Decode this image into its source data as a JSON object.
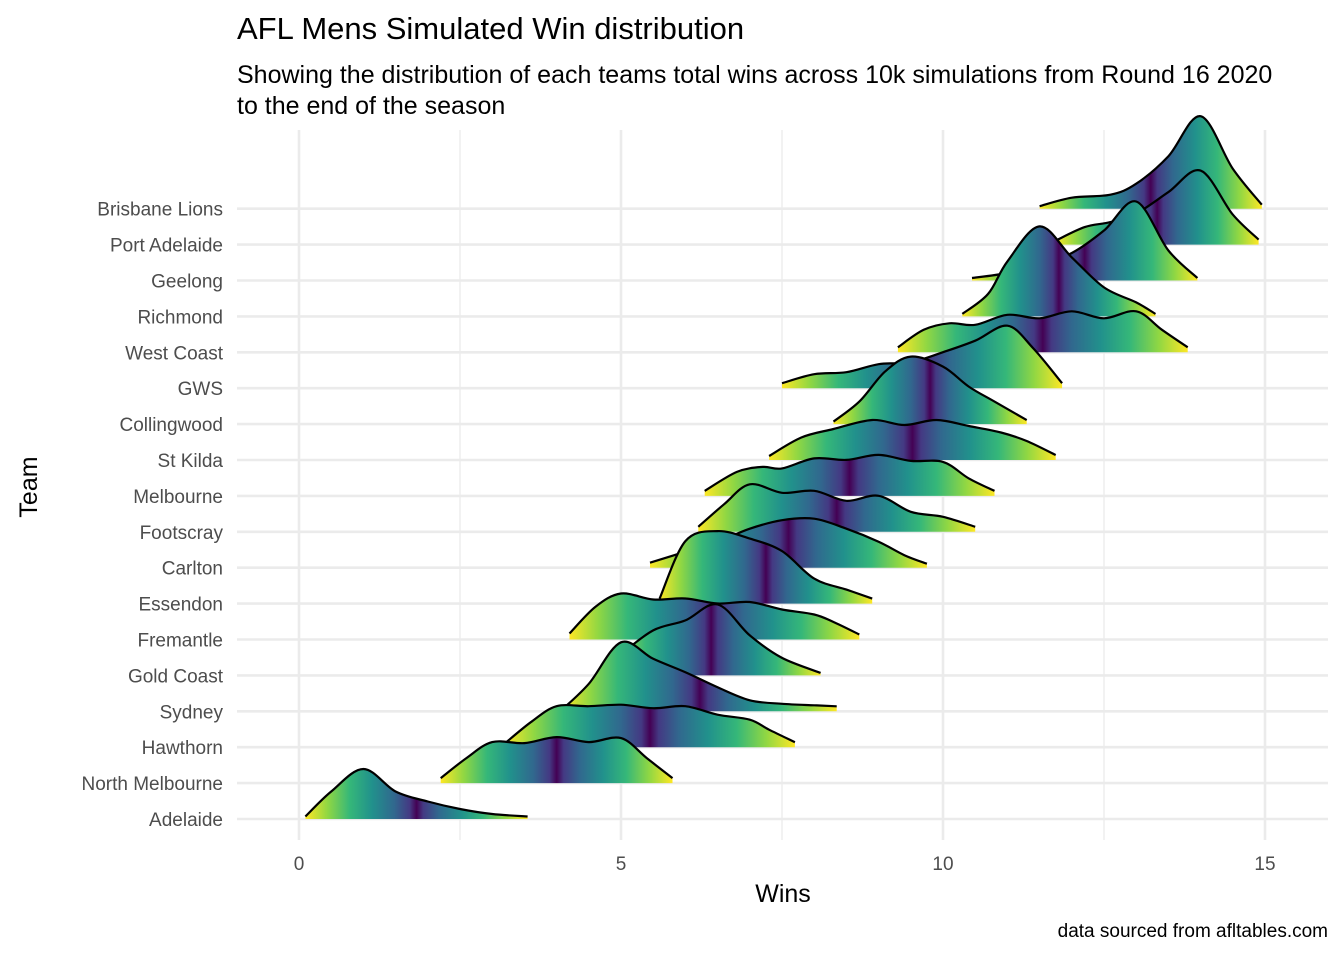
{
  "title": "AFL Mens Simulated Win distribution",
  "subtitle": "Showing the distribution of each teams total wins across 10k simulations from Round 16 2020 to the end of the season",
  "caption": "data sourced from afltables.com",
  "chart_data": {
    "type": "ridgeline",
    "xlabel": "Wins",
    "ylabel": "Team",
    "xlim": [
      -1.8,
      16.5
    ],
    "x_ticks": [
      0,
      5,
      10,
      15
    ],
    "grid": true,
    "fill": "viridis gradient by distance from ridge peak (yellow tails, purple center)",
    "categories": [
      "Adelaide",
      "North Melbourne",
      "Hawthorn",
      "Sydney",
      "Gold Coast",
      "Fremantle",
      "Essendon",
      "Carlton",
      "Footscray",
      "Melbourne",
      "St Kilda",
      "Collingwood",
      "GWS",
      "West Coast",
      "Richmond",
      "Geelong",
      "Port Adelaide",
      "Brisbane Lions"
    ],
    "series": [
      {
        "name": "Adelaide",
        "x": [
          0.1,
          0.5,
          1.0,
          1.5,
          2.0,
          2.5,
          3.0,
          3.55
        ],
        "y": [
          0.05,
          0.55,
          1.0,
          0.55,
          0.35,
          0.2,
          0.1,
          0.05
        ]
      },
      {
        "name": "North Melbourne",
        "x": [
          2.2,
          2.6,
          3.0,
          3.5,
          4.0,
          4.5,
          5.0,
          5.4,
          5.8
        ],
        "y": [
          0.1,
          0.5,
          0.82,
          0.8,
          0.92,
          0.82,
          0.9,
          0.5,
          0.1
        ]
      },
      {
        "name": "Hawthorn",
        "x": [
          3.2,
          3.6,
          4.0,
          4.5,
          5.0,
          5.5,
          6.0,
          6.5,
          7.0,
          7.3,
          7.7
        ],
        "y": [
          0.08,
          0.5,
          0.82,
          0.82,
          0.85,
          0.78,
          0.82,
          0.65,
          0.55,
          0.35,
          0.1
        ]
      },
      {
        "name": "Sydney",
        "x": [
          4.1,
          4.5,
          5.0,
          5.5,
          6.0,
          6.5,
          7.0,
          7.5,
          8.0,
          8.35
        ],
        "y": [
          0.05,
          0.55,
          1.38,
          1.05,
          0.78,
          0.48,
          0.22,
          0.15,
          0.12,
          0.1
        ]
      },
      {
        "name": "Gold Coast",
        "x": [
          4.7,
          5.0,
          5.5,
          6.0,
          6.5,
          7.0,
          7.5,
          8.1
        ],
        "y": [
          0.05,
          0.42,
          0.9,
          1.1,
          1.42,
          0.8,
          0.35,
          0.05
        ]
      },
      {
        "name": "Fremantle",
        "x": [
          4.2,
          4.6,
          5.0,
          5.5,
          6.0,
          6.5,
          7.0,
          7.5,
          8.0,
          8.3,
          8.7
        ],
        "y": [
          0.12,
          0.65,
          0.92,
          0.8,
          0.82,
          0.72,
          0.75,
          0.6,
          0.5,
          0.35,
          0.1
        ]
      },
      {
        "name": "Essendon",
        "x": [
          5.6,
          6.0,
          6.5,
          7.0,
          7.5,
          8.0,
          8.5,
          8.9
        ],
        "y": [
          0.1,
          1.25,
          1.45,
          1.3,
          1.05,
          0.5,
          0.28,
          0.1
        ]
      },
      {
        "name": "Carlton",
        "x": [
          5.45,
          6.0,
          6.5,
          7.0,
          7.5,
          8.0,
          8.5,
          9.0,
          9.4,
          9.75
        ],
        "y": [
          0.1,
          0.32,
          0.52,
          0.78,
          0.95,
          0.98,
          0.78,
          0.52,
          0.25,
          0.08
        ]
      },
      {
        "name": "Footscray",
        "x": [
          6.2,
          6.6,
          7.0,
          7.5,
          8.0,
          8.5,
          9.0,
          9.5,
          10.0,
          10.5
        ],
        "y": [
          0.1,
          0.55,
          0.95,
          0.78,
          0.82,
          0.62,
          0.72,
          0.4,
          0.3,
          0.1
        ]
      },
      {
        "name": "Melbourne",
        "x": [
          6.3,
          6.8,
          7.2,
          7.5,
          8.0,
          8.5,
          9.0,
          9.5,
          10.0,
          10.4,
          10.8
        ],
        "y": [
          0.1,
          0.48,
          0.58,
          0.55,
          0.75,
          0.72,
          0.82,
          0.7,
          0.68,
          0.35,
          0.1
        ]
      },
      {
        "name": "St Kilda",
        "x": [
          7.3,
          7.8,
          8.3,
          8.9,
          9.4,
          9.9,
          10.4,
          10.9,
          11.3,
          11.75
        ],
        "y": [
          0.08,
          0.45,
          0.62,
          0.8,
          0.7,
          0.8,
          0.68,
          0.55,
          0.38,
          0.1
        ]
      },
      {
        "name": "Collingwood",
        "x": [
          8.3,
          8.7,
          9.1,
          9.5,
          10.0,
          10.4,
          10.8,
          11.3
        ],
        "y": [
          0.05,
          0.45,
          1.05,
          1.35,
          1.15,
          0.75,
          0.45,
          0.08
        ]
      },
      {
        "name": "GWS",
        "x": [
          7.5,
          8.0,
          8.5,
          9.0,
          9.5,
          10.0,
          10.5,
          11.0,
          11.4,
          11.85
        ],
        "y": [
          0.1,
          0.28,
          0.32,
          0.48,
          0.52,
          0.72,
          0.95,
          1.25,
          0.8,
          0.1
        ]
      },
      {
        "name": "West Coast",
        "x": [
          9.3,
          9.7,
          10.1,
          10.5,
          11.0,
          11.5,
          12.0,
          12.5,
          13.0,
          13.4,
          13.8
        ],
        "y": [
          0.1,
          0.45,
          0.58,
          0.55,
          0.75,
          0.68,
          0.82,
          0.68,
          0.82,
          0.45,
          0.1
        ]
      },
      {
        "name": "Richmond",
        "x": [
          10.3,
          10.7,
          11.0,
          11.5,
          12.0,
          12.5,
          13.0,
          13.3
        ],
        "y": [
          0.05,
          0.45,
          1.1,
          1.8,
          1.18,
          0.58,
          0.28,
          0.05
        ]
      },
      {
        "name": "Geelong",
        "x": [
          10.45,
          11.0,
          11.5,
          12.0,
          12.5,
          13.0,
          13.5,
          13.95
        ],
        "y": [
          0.05,
          0.15,
          0.32,
          0.55,
          1.0,
          1.58,
          0.6,
          0.05
        ]
      },
      {
        "name": "Port Adelaide",
        "x": [
          11.75,
          12.2,
          12.6,
          13.0,
          13.5,
          14.0,
          14.5,
          14.9
        ],
        "y": [
          0.08,
          0.35,
          0.45,
          0.62,
          1.05,
          1.48,
          0.6,
          0.1
        ]
      },
      {
        "name": "Brisbane Lions",
        "x": [
          11.5,
          12.0,
          12.6,
          13.0,
          13.5,
          14.0,
          14.5,
          14.95
        ],
        "y": [
          0.05,
          0.22,
          0.28,
          0.5,
          1.05,
          1.85,
          0.8,
          0.08
        ]
      }
    ]
  }
}
